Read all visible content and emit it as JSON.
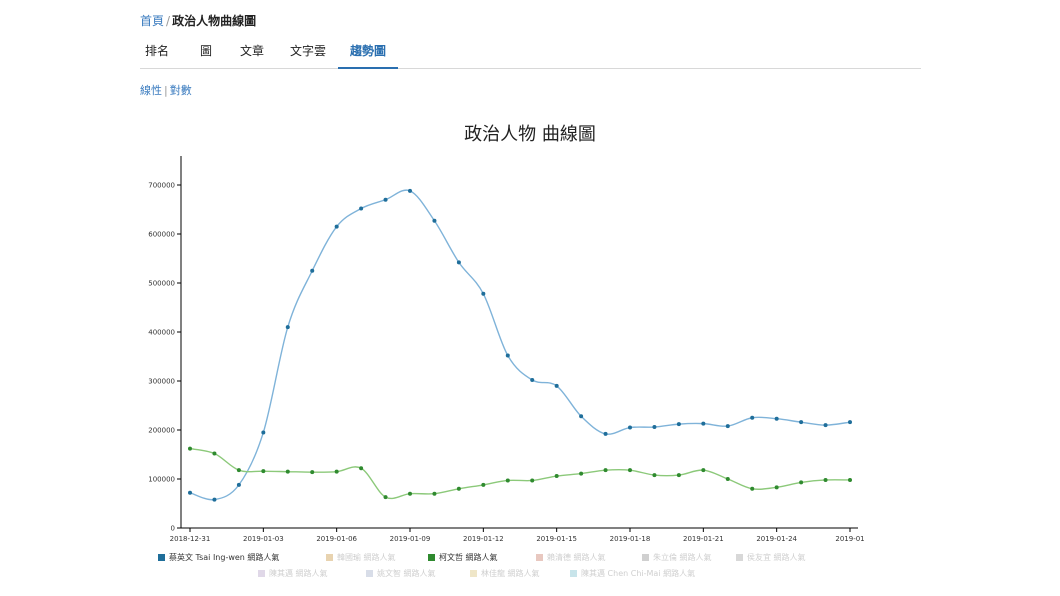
{
  "breadcrumb": {
    "home": "首頁",
    "separator": "/",
    "current": "政治人物曲線圖"
  },
  "tabs": [
    {
      "label": "排名",
      "active": false
    },
    {
      "label": "圖",
      "active": false
    },
    {
      "label": "文章",
      "active": false
    },
    {
      "label": "文字雲",
      "active": false
    },
    {
      "label": "趨勢圖",
      "active": true
    }
  ],
  "scale_links": {
    "linear": "線性",
    "separator": "|",
    "log": "對數"
  },
  "colors": {
    "link": "#3a7bbf",
    "active_tab": "#2a6fb0"
  },
  "chart_data": {
    "type": "line",
    "title": "政治人物 曲線圖",
    "xlabel": "",
    "ylabel": "",
    "x_tick_labels": [
      "2018-12-31",
      "2019-01-03",
      "2019-01-06",
      "2019-01-09",
      "2019-01-12",
      "2019-01-15",
      "2019-01-18",
      "2019-01-21",
      "2019-01-24",
      "2019-01"
    ],
    "y_ticks": [
      0,
      100000,
      200000,
      300000,
      400000,
      500000,
      600000,
      700000
    ],
    "ylim": [
      0,
      720000
    ],
    "grid": false,
    "legend_placement": "bottom",
    "series": [
      {
        "name": "蔡英文 Tsai Ing-wen 網路人氣",
        "color": "#7fb3d9",
        "marker": "#1f6e9a",
        "values": [
          72000,
          58000,
          88000,
          195000,
          410000,
          525000,
          615000,
          652000,
          670000,
          688000,
          627000,
          542000,
          478000,
          352000,
          302000,
          290000,
          228000,
          192000,
          205000,
          206000,
          212000,
          213000,
          208000,
          225000,
          223000,
          216000,
          210000,
          216000
        ]
      },
      {
        "name": "柯文哲 網路人氣",
        "color": "#8cc97a",
        "marker": "#2f8a2f",
        "values": [
          162000,
          152000,
          118000,
          116000,
          115000,
          114000,
          115000,
          122000,
          63000,
          70000,
          70000,
          80000,
          88000,
          97000,
          97000,
          106000,
          111000,
          118000,
          118000,
          108000,
          108000,
          118000,
          100000,
          80000,
          83000,
          93000,
          98000,
          98000
        ]
      }
    ],
    "legend_entries": [
      {
        "label": "蔡英文 Tsai Ing-wen 網路人氣",
        "color": "#1f6e9a",
        "active": true
      },
      {
        "label": "韓國瑜 網路人氣",
        "color": "#e8d3b0",
        "active": false
      },
      {
        "label": "柯文哲 網路人氣",
        "color": "#2f8a2f",
        "active": true
      },
      {
        "label": "賴清德 網路人氣",
        "color": "#e8c8c0",
        "active": false
      },
      {
        "label": "朱立倫 網路人氣",
        "color": "#d0d0d0",
        "active": false
      },
      {
        "label": "侯友宜 網路人氣",
        "color": "#d8d8d8",
        "active": false
      },
      {
        "label": "陳其邁 網路人氣",
        "color": "#e0d8e8",
        "active": false
      },
      {
        "label": "姚文智 網路人氣",
        "color": "#d8dde8",
        "active": false
      },
      {
        "label": "林佳龍 網路人氣",
        "color": "#efe6c8",
        "active": false
      },
      {
        "label": "陳其邁 Chen Chi-Mai 網路人氣",
        "color": "#c8e4ea",
        "active": false
      }
    ]
  }
}
